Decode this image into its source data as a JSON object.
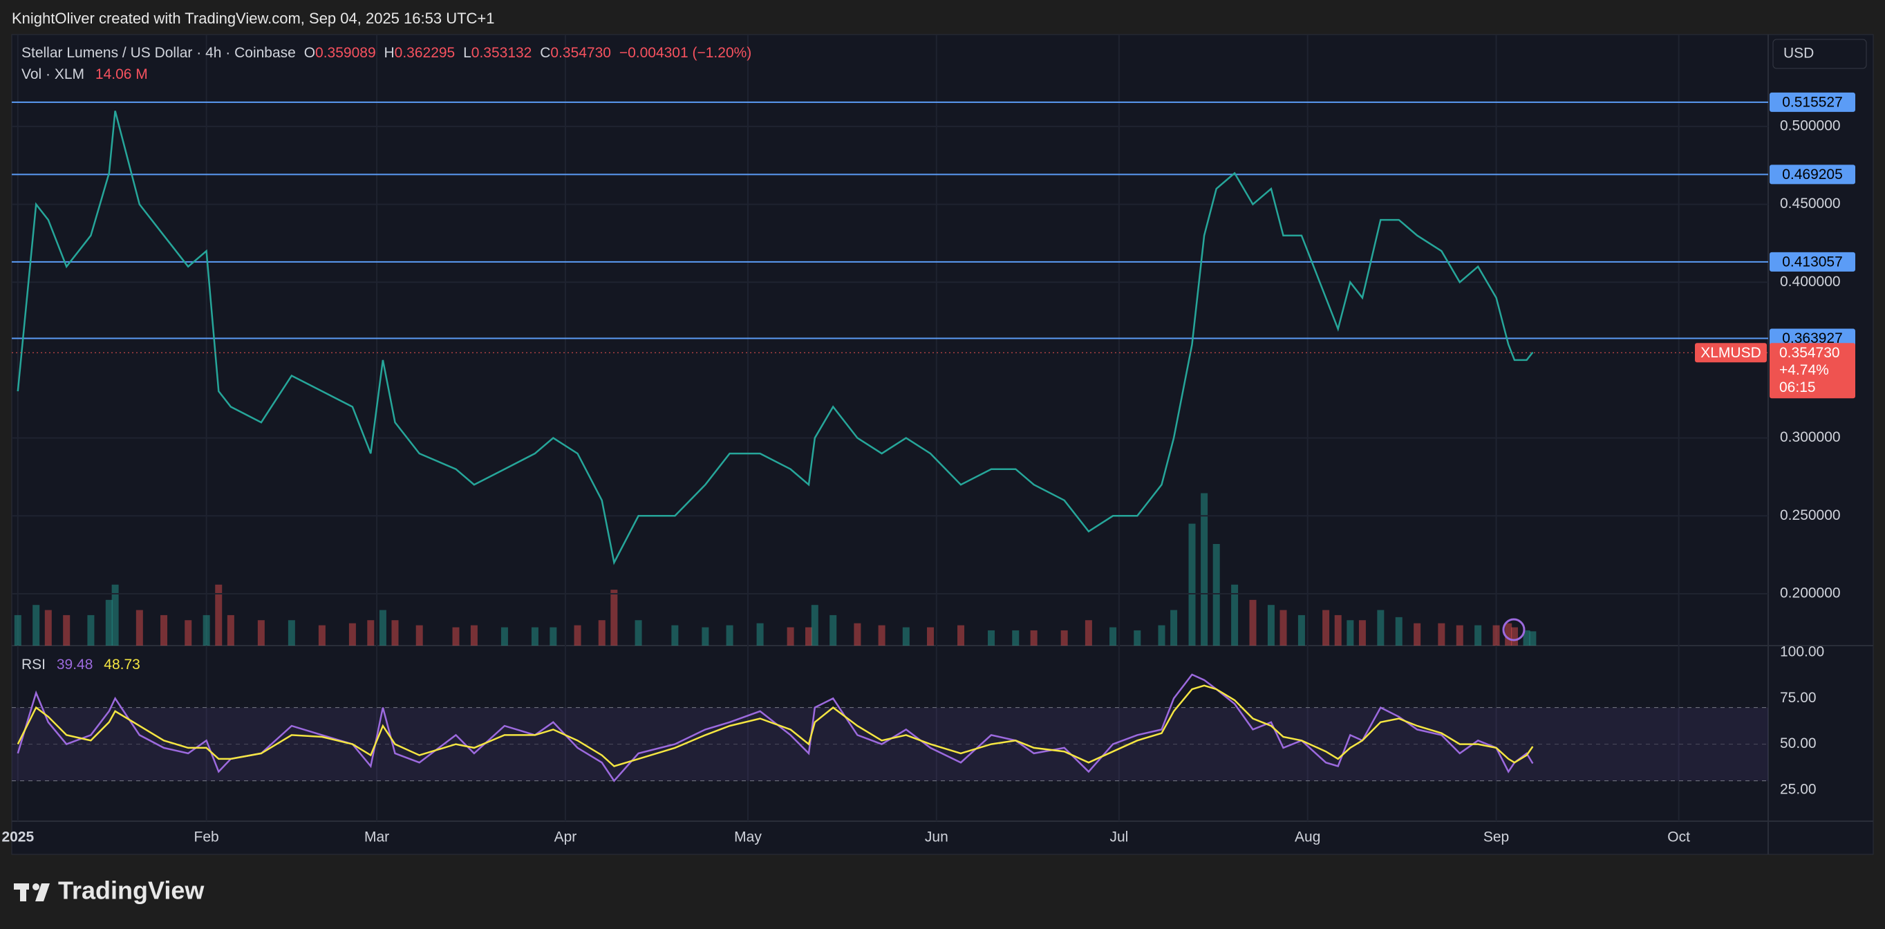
{
  "header": {
    "attribution": "KnightOliver created with TradingView.com, Sep 04, 2025 16:53 UTC+1"
  },
  "legend": {
    "symbol": "Stellar Lumens / US Dollar · 4h · Coinbase",
    "open_label": "O",
    "open": "0.359089",
    "high_label": "H",
    "high": "0.362295",
    "low_label": "L",
    "low": "0.353132",
    "close_label": "C",
    "close": "0.354730",
    "change": "−0.004301 (−1.20%)",
    "volume_label": "Vol · XLM",
    "volume": "14.06 M",
    "rsi_label": "RSI",
    "rsi": "39.48",
    "rsi_ma": "48.73"
  },
  "currency": "USD",
  "price_tag": {
    "symbol": "XLMUSD",
    "change": "+4.74%",
    "countdown": "06:15"
  },
  "footer": {
    "logo": "TradingView"
  },
  "chart_data": [
    {
      "type": "line",
      "color": "#26a69a",
      "x": [
        0,
        3,
        5,
        8,
        12,
        15,
        16,
        20,
        24,
        28,
        31,
        33,
        35,
        40,
        45,
        50,
        55,
        58,
        60,
        62,
        66,
        72,
        75,
        80,
        85,
        88,
        92,
        96,
        98,
        102,
        108,
        113,
        117,
        122,
        127,
        130,
        131,
        134,
        138,
        142,
        146,
        150,
        155,
        160,
        164,
        167,
        172,
        176,
        180,
        184,
        188,
        190,
        193,
        195,
        197,
        200,
        203,
        206,
        208,
        211,
        215,
        217,
        219,
        221,
        224,
        227,
        230,
        234,
        237,
        240,
        243,
        245,
        246,
        248,
        249
      ],
      "values": [
        0.33,
        0.45,
        0.44,
        0.41,
        0.43,
        0.47,
        0.51,
        0.45,
        0.43,
        0.41,
        0.42,
        0.33,
        0.32,
        0.31,
        0.34,
        0.33,
        0.32,
        0.29,
        0.35,
        0.31,
        0.29,
        0.28,
        0.27,
        0.28,
        0.29,
        0.3,
        0.29,
        0.26,
        0.22,
        0.25,
        0.25,
        0.27,
        0.29,
        0.29,
        0.28,
        0.27,
        0.3,
        0.32,
        0.3,
        0.29,
        0.3,
        0.29,
        0.27,
        0.28,
        0.28,
        0.27,
        0.26,
        0.24,
        0.25,
        0.25,
        0.27,
        0.3,
        0.36,
        0.43,
        0.46,
        0.47,
        0.45,
        0.46,
        0.43,
        0.43,
        0.39,
        0.37,
        0.4,
        0.39,
        0.44,
        0.44,
        0.43,
        0.42,
        0.4,
        0.41,
        0.39,
        0.36,
        0.35,
        0.35,
        0.355
      ],
      "xlim": [
        -1,
        287.7
      ],
      "xticks": [
        {
          "value": 0,
          "label": "2025"
        },
        {
          "value": 31,
          "label": "Feb"
        },
        {
          "value": 59,
          "label": "Mar"
        },
        {
          "value": 90,
          "label": "Apr"
        },
        {
          "value": 120,
          "label": "May"
        },
        {
          "value": 151,
          "label": "Jun"
        },
        {
          "value": 181,
          "label": "Jul"
        },
        {
          "value": 212,
          "label": "Aug"
        },
        {
          "value": 243,
          "label": "Sep"
        },
        {
          "value": 273,
          "label": "Oct"
        }
      ],
      "ylim": [
        0.1667,
        0.5581
      ],
      "yticks": [
        {
          "value": 0.2,
          "label": "0.200000"
        },
        {
          "value": 0.25,
          "label": "0.250000"
        },
        {
          "value": 0.3,
          "label": "0.300000"
        },
        {
          "value": 0.4,
          "label": "0.400000"
        },
        {
          "value": 0.45,
          "label": "0.450000"
        },
        {
          "value": 0.5,
          "label": "0.500000"
        }
      ],
      "levels": [
        0.515527,
        0.469205,
        0.413057,
        0.363927
      ],
      "last_price": {
        "value": 0.35473,
        "label": "0.354730"
      },
      "grid": true
    },
    {
      "type": "bar",
      "color": "#26a69a",
      "down_color": "#ef5350",
      "x": [
        0,
        3,
        5,
        8,
        12,
        15,
        16,
        20,
        24,
        28,
        31,
        33,
        35,
        40,
        45,
        50,
        55,
        58,
        60,
        62,
        66,
        72,
        75,
        80,
        85,
        88,
        92,
        96,
        98,
        102,
        108,
        113,
        117,
        122,
        127,
        130,
        131,
        134,
        138,
        142,
        146,
        150,
        155,
        160,
        164,
        167,
        172,
        176,
        180,
        184,
        188,
        190,
        193,
        195,
        197,
        200,
        203,
        206,
        208,
        211,
        215,
        217,
        219,
        221,
        224,
        227,
        230,
        234,
        237,
        240,
        243,
        245,
        246,
        248,
        249
      ],
      "values": [
        30,
        40,
        35,
        30,
        30,
        45,
        60,
        35,
        30,
        25,
        30,
        60,
        30,
        25,
        25,
        20,
        22,
        25,
        35,
        25,
        20,
        18,
        20,
        18,
        18,
        18,
        20,
        25,
        55,
        25,
        20,
        18,
        20,
        22,
        18,
        18,
        40,
        30,
        22,
        20,
        18,
        18,
        20,
        15,
        15,
        15,
        15,
        25,
        18,
        15,
        20,
        35,
        120,
        150,
        100,
        60,
        45,
        40,
        35,
        30,
        35,
        30,
        25,
        25,
        35,
        28,
        22,
        22,
        20,
        20,
        20,
        22,
        18,
        15,
        14.06
      ],
      "xlim": [
        -1,
        287.7
      ],
      "ylim": [
        0,
        600
      ]
    },
    {
      "type": "line",
      "x": [
        0,
        3,
        5,
        8,
        12,
        15,
        16,
        20,
        24,
        28,
        31,
        33,
        35,
        40,
        45,
        50,
        55,
        58,
        60,
        62,
        66,
        72,
        75,
        80,
        85,
        88,
        92,
        96,
        98,
        102,
        108,
        113,
        117,
        122,
        127,
        130,
        131,
        134,
        138,
        142,
        146,
        150,
        155,
        160,
        164,
        167,
        172,
        176,
        180,
        184,
        188,
        190,
        193,
        195,
        197,
        200,
        203,
        206,
        208,
        211,
        215,
        217,
        219,
        221,
        224,
        227,
        230,
        234,
        237,
        240,
        243,
        245,
        246,
        248,
        249
      ],
      "series": [
        {
          "color": "#9c6ade",
          "values": [
            45,
            78,
            62,
            50,
            55,
            68,
            75,
            55,
            48,
            45,
            52,
            35,
            42,
            45,
            60,
            55,
            50,
            38,
            70,
            45,
            40,
            55,
            45,
            60,
            55,
            62,
            48,
            40,
            30,
            45,
            50,
            58,
            62,
            68,
            55,
            45,
            70,
            75,
            55,
            50,
            58,
            48,
            40,
            55,
            52,
            45,
            48,
            35,
            50,
            55,
            58,
            75,
            88,
            85,
            80,
            72,
            58,
            62,
            48,
            52,
            40,
            38,
            55,
            52,
            70,
            65,
            58,
            55,
            45,
            52,
            48,
            35,
            40,
            45,
            39.48
          ]
        },
        {
          "color": "#f5e642",
          "values": [
            50,
            70,
            65,
            55,
            52,
            62,
            68,
            60,
            52,
            48,
            48,
            42,
            42,
            45,
            55,
            54,
            50,
            44,
            60,
            50,
            44,
            50,
            48,
            55,
            55,
            58,
            52,
            44,
            38,
            42,
            48,
            55,
            60,
            64,
            58,
            50,
            62,
            70,
            60,
            52,
            55,
            50,
            45,
            50,
            52,
            48,
            46,
            40,
            46,
            52,
            56,
            68,
            80,
            82,
            80,
            74,
            64,
            60,
            54,
            52,
            46,
            42,
            48,
            52,
            62,
            64,
            60,
            56,
            50,
            50,
            48,
            42,
            40,
            44,
            48.73
          ]
        }
      ],
      "xlim": [
        -1,
        287.7
      ],
      "ylim": [
        8,
        103.8
      ],
      "yticks": [
        {
          "value": 25,
          "label": "25.00"
        },
        {
          "value": 50,
          "label": "50.00"
        },
        {
          "value": 75,
          "label": "75.00"
        },
        {
          "value": 100,
          "label": "100.00"
        }
      ],
      "band": [
        30,
        70
      ],
      "midline": 50
    }
  ]
}
